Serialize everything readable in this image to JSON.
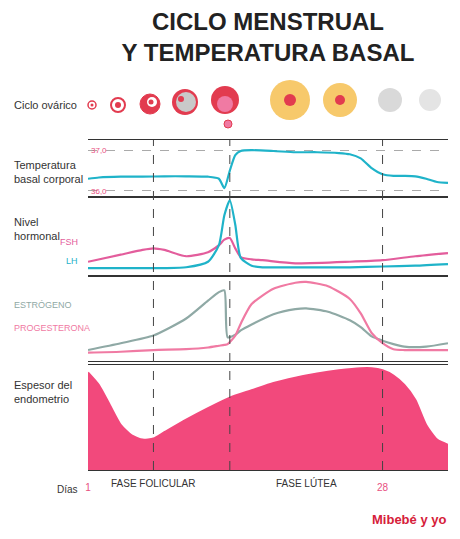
{
  "title": "CICLO MENSTRUAL\nY TEMPERATURA BASAL",
  "ovarian_cycle_label": "Ciclo ovárico",
  "phase_boundaries": [
    7,
    14,
    28
  ],
  "source": "Mibebé y yo",
  "chart_data": [
    {
      "type": "line",
      "title": "Temperatura\nbasal corporal",
      "x": [
        1,
        2,
        4,
        6,
        8,
        10,
        12,
        13,
        13.5,
        14,
        14.5,
        15,
        16,
        18,
        20,
        22,
        24,
        25,
        26,
        27,
        28,
        29,
        30,
        31,
        32,
        33,
        34
      ],
      "xlim": [
        1,
        34
      ],
      "ylim": [
        35.85,
        37.25
      ],
      "yticks": [
        {
          "value": 37,
          "label": "37,0"
        },
        {
          "value": 36,
          "label": "36,0"
        }
      ],
      "grid": true,
      "tick_labels": "y",
      "series": [
        {
          "color": "#1fb3c9",
          "values": [
            36.3,
            36.33,
            36.35,
            36.35,
            36.36,
            36.36,
            36.35,
            36.3,
            36.07,
            36.5,
            36.88,
            36.98,
            37.0,
            36.98,
            36.95,
            36.95,
            36.93,
            36.9,
            36.8,
            36.56,
            36.41,
            36.37,
            36.37,
            36.36,
            36.3,
            36.22,
            36.2
          ]
        }
      ]
    },
    {
      "type": "line",
      "title": "Nivel\nhormonal",
      "x": [
        1,
        4,
        6,
        7,
        8,
        10,
        12,
        13,
        13.5,
        14,
        14.5,
        15,
        16,
        17,
        20,
        25,
        28,
        31,
        34
      ],
      "xlim": [
        1,
        34
      ],
      "ylim": [
        0,
        100
      ],
      "tick_labels": false,
      "series": [
        {
          "name": "FSH",
          "color": "#e35d9c",
          "values": [
            18,
            27,
            33,
            35,
            33,
            25,
            30,
            39,
            46,
            48,
            35,
            24,
            21,
            20,
            16,
            18,
            20,
            25,
            29
          ]
        },
        {
          "name": "LH",
          "color": "#1fb3c9",
          "values": [
            10,
            10,
            10,
            10,
            10,
            11,
            18,
            39,
            77,
            96,
            65,
            23,
            13,
            11,
            11,
            11,
            12,
            13,
            15
          ]
        }
      ]
    },
    {
      "type": "line",
      "x": [
        1,
        4,
        7,
        10,
        12,
        13,
        13.5,
        13.8,
        14.5,
        15,
        16,
        18,
        20,
        21,
        23,
        25,
        26,
        27,
        28,
        29,
        30,
        32,
        34
      ],
      "xlim": [
        1,
        34
      ],
      "ylim": [
        0,
        100
      ],
      "tick_labels": false,
      "series": [
        {
          "name": "ESTRÓGENO",
          "color": "#8fa9a5",
          "values": [
            13,
            21,
            30,
            50,
            71,
            81,
            83,
            28,
            31,
            36,
            43,
            55,
            61,
            62,
            58,
            48,
            40,
            29,
            24,
            20,
            17,
            17,
            21
          ]
        },
        {
          "name": "PROGESTERONA",
          "color": "#f07aa3",
          "values": [
            10,
            11,
            13,
            14,
            16,
            18,
            19,
            20,
            30,
            44,
            67,
            85,
            92,
            93,
            88,
            73,
            56,
            33,
            21,
            14,
            13,
            13,
            13
          ]
        }
      ]
    },
    {
      "type": "area",
      "title": "Espesor del\nendometrio",
      "x": [
        1,
        2,
        3,
        4,
        5,
        6,
        7,
        8,
        10,
        12,
        14,
        16,
        18,
        20,
        22,
        24,
        26,
        27,
        28,
        29,
        30,
        31,
        32,
        33,
        34
      ],
      "xlim": [
        1,
        34
      ],
      "xticks": [
        1,
        28
      ],
      "ylim": [
        0,
        100
      ],
      "tick_labels": "x",
      "xlabel": "Días",
      "annotations": [
        {
          "text": "FASE FOLICULAR",
          "x": 7
        },
        {
          "text": "FASE LÚTEA",
          "x": 21
        }
      ],
      "color": "#f2497c",
      "series": [
        {
          "values": [
            93,
            81,
            62,
            43,
            33,
            29,
            30,
            36,
            48,
            59,
            69,
            76,
            83,
            88,
            92,
            95,
            97,
            97,
            95,
            90,
            81,
            67,
            43,
            29,
            24
          ]
        }
      ]
    }
  ]
}
